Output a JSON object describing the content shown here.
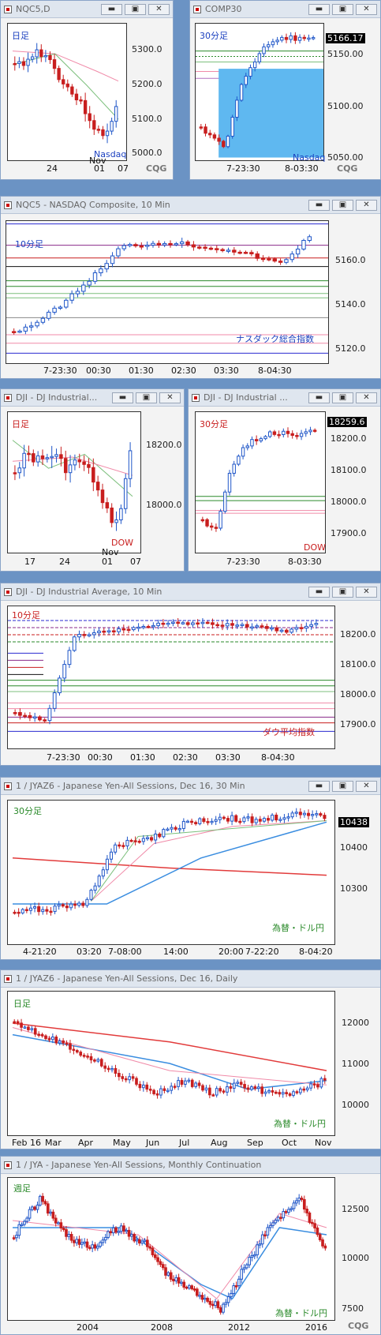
{
  "windows": {
    "w1": {
      "title": "NQC5,D",
      "timeframe": "日足",
      "watermark": "Nasdaq",
      "yticks": [
        "5300.0",
        "5200.0",
        "5100.0",
        "5000.0"
      ],
      "xticks": [
        "24",
        "01",
        "07"
      ],
      "month": "Nov",
      "brand": "CQG"
    },
    "w2": {
      "title": "COMP30",
      "timeframe": "30分足",
      "watermark": "Nasdaq",
      "yticks": [
        "5150.00",
        "5100.00",
        "5050.00"
      ],
      "last_price": "5166.17",
      "xticks": [
        "7-23:30",
        "8-03:30"
      ],
      "brand": "CQG"
    },
    "w3": {
      "title": "NQC5 - NASDAQ Composite, 10 Min",
      "timeframe": "10分足",
      "watermark": "ナスダック総合指数",
      "yticks": [
        "5160.0",
        "5140.0",
        "5120.0"
      ],
      "xticks": [
        "7-23:30",
        "00:30",
        "01:30",
        "02:30",
        "03:30",
        "8-04:30"
      ]
    },
    "w4": {
      "title": "DJI - DJ Industrial...",
      "timeframe": "日足",
      "watermark": "DOW",
      "yticks": [
        "18200.0",
        "18000.0"
      ],
      "xticks": [
        "17",
        "24",
        "01",
        "07"
      ],
      "month": "Nov"
    },
    "w5": {
      "title": "DJI - DJ Industrial ...",
      "timeframe": "30分足",
      "watermark": "DOW",
      "yticks": [
        "18200.0",
        "18100.0",
        "18000.0",
        "17900.0"
      ],
      "last_price": "18259.6",
      "xticks": [
        "7-23:30",
        "8-03:30"
      ]
    },
    "w6": {
      "title": "DJI - DJ Industrial Average, 10 Min",
      "timeframe": "10分足",
      "watermark": "ダウ平均指数",
      "yticks": [
        "18200.0",
        "18100.0",
        "18000.0",
        "17900.0"
      ],
      "xticks": [
        "7-23:30",
        "00:30",
        "01:30",
        "02:30",
        "03:30",
        "8-04:30"
      ]
    },
    "w7": {
      "title": "1 / JYAZ6 - Japanese Yen-All Sessions, Dec 16, 30 Min",
      "timeframe": "30分足",
      "watermark": "為替・ドル円",
      "yticks": [
        "10400",
        "10300"
      ],
      "last_price": "10438",
      "xticks": [
        "4-21:20",
        "03:20",
        "7-08:00",
        "14:00",
        "20:00",
        "7-22:20",
        "8-04:20"
      ]
    },
    "w8": {
      "title": "1 / JYAZ6 - Japanese Yen-All Sessions, Dec 16, Daily",
      "timeframe": "日足",
      "watermark": "為替・ドル円",
      "yticks": [
        "12000",
        "11000",
        "10000"
      ],
      "xticks": [
        "Feb 16",
        "Mar",
        "Apr",
        "May",
        "Jun",
        "Jul",
        "Aug",
        "Sep",
        "Oct",
        "Nov"
      ]
    },
    "w9": {
      "title": "1 / JYA - Japanese Yen-All Sessions, Monthly Continuation",
      "timeframe": "週足",
      "watermark": "為替・ドル円",
      "yticks": [
        "12500",
        "10000",
        "7500"
      ],
      "xticks": [
        "2004",
        "2008",
        "2012",
        "2016"
      ],
      "brand": "CQG"
    }
  },
  "buttons": {
    "minimize": "▬",
    "maximize": "▣",
    "close": "✕"
  },
  "colors": {
    "up": "#1f56c8",
    "down": "#c81e1e",
    "ma_pink": "#f08aa8",
    "ma_green": "#7cbf7c",
    "ma_blue": "#3a8de0",
    "ma_red": "#e23b3b",
    "highlight": "#5fb8f0"
  }
}
